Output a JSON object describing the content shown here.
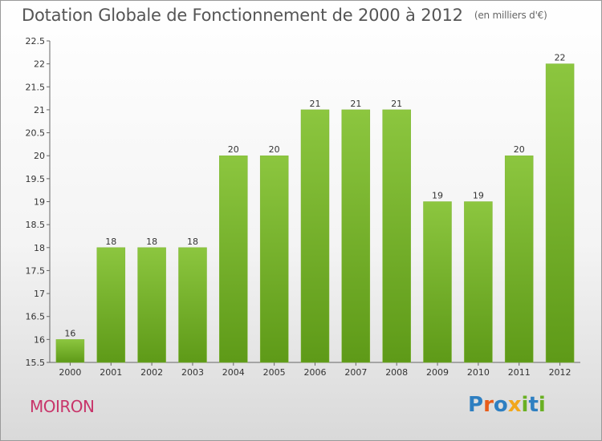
{
  "chart_data": {
    "type": "bar",
    "title": "Dotation Globale de Fonctionnement de 2000 à 2012",
    "unit": "(en milliers d'€)",
    "categories": [
      "2000",
      "2001",
      "2002",
      "2003",
      "2004",
      "2005",
      "2006",
      "2007",
      "2008",
      "2009",
      "2010",
      "2011",
      "2012"
    ],
    "values": [
      16,
      18,
      18,
      18,
      20,
      20,
      21,
      21,
      21,
      19,
      19,
      20,
      22
    ],
    "ylim": [
      15.5,
      22.5
    ],
    "yticks": [
      15.5,
      16,
      16.5,
      17,
      17.5,
      18,
      18.5,
      19,
      19.5,
      20,
      20.5,
      21,
      21.5,
      22,
      22.5
    ],
    "grid": false,
    "bar_color": "#8cc63f",
    "bar_color_dark": "#5e9a18"
  },
  "footer": {
    "location": "MOIRON",
    "location_color": "#c8356a",
    "brand": "Proxiti"
  }
}
